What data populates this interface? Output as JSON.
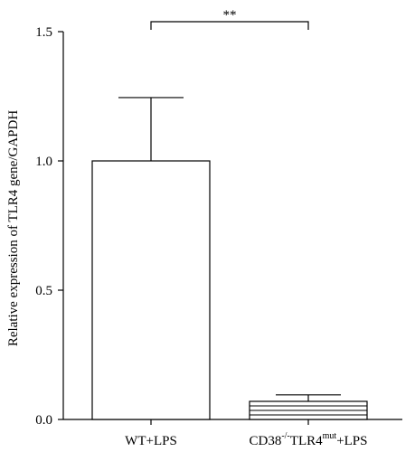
{
  "chart_data": {
    "type": "bar",
    "title": "",
    "xlabel": "",
    "ylabel": "Relative expression of TLR4 gene/GAPDH",
    "ylim": [
      0,
      1.5
    ],
    "yticks": [
      "0.0",
      "0.5",
      "1.0",
      "1.5"
    ],
    "categories": [
      {
        "base": "WT+LPS",
        "sup1": "",
        "mid": "",
        "sup2": "",
        "tail": ""
      },
      {
        "base": "CD38",
        "sup1": "-/-",
        "mid": "TLR4",
        "sup2": "mut",
        "tail": "+LPS"
      }
    ],
    "values": [
      1.0,
      0.07
    ],
    "error_upper": [
      0.245,
      0.025
    ],
    "hatch": [
      false,
      true
    ],
    "significance": {
      "label": "**",
      "between": [
        0,
        1
      ]
    },
    "grid": false,
    "colors": {
      "bar_fill": "#ffffff",
      "stroke": "#000000"
    }
  }
}
